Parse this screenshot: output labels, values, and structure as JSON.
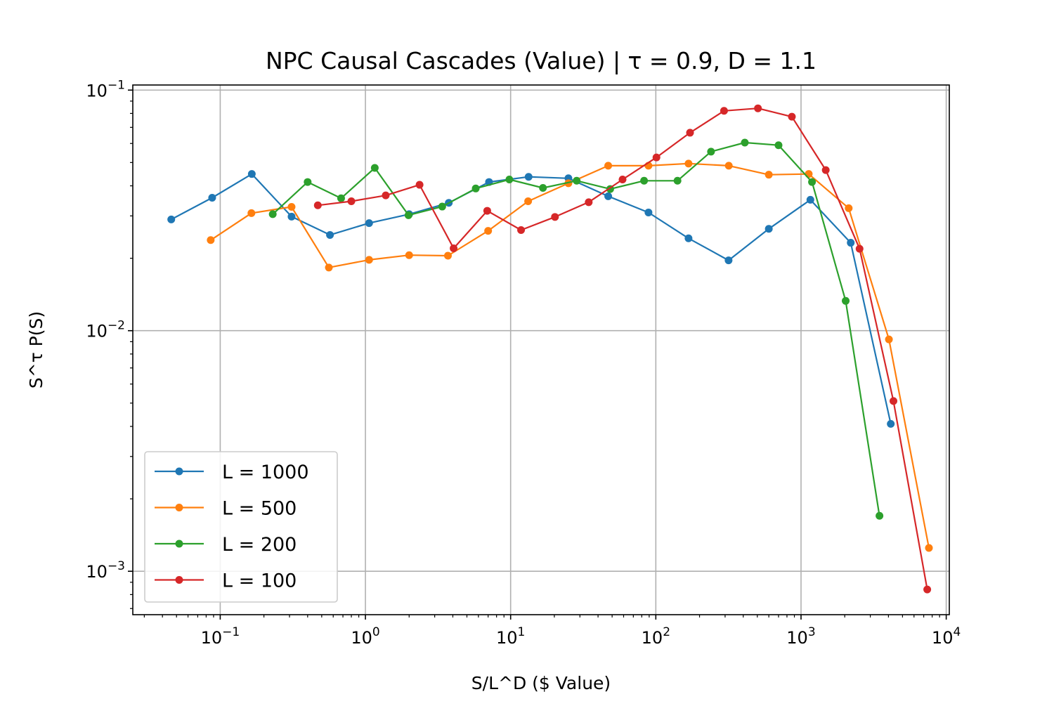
{
  "chart_data": {
    "type": "line",
    "title": "NPC Causal Cascades (Value) | τ = 0.9, D = 1.1",
    "xlabel": "S/L^D ($ Value)",
    "ylabel": "S^τ P(S)",
    "xscale": "log",
    "yscale": "log",
    "xlim": [
      0.025,
      10500
    ],
    "ylim": [
      0.00066,
      0.105
    ],
    "grid": true,
    "legend_position": "lower-left",
    "x_ticks": [
      {
        "value": 0.1,
        "label": "10^−1"
      },
      {
        "value": 1,
        "label": "10^0"
      },
      {
        "value": 10,
        "label": "10^1"
      },
      {
        "value": 100,
        "label": "10^2"
      },
      {
        "value": 1000,
        "label": "10^3"
      },
      {
        "value": 10000,
        "label": "10^4"
      }
    ],
    "y_ticks": [
      {
        "value": 0.001,
        "label": "10^−3"
      },
      {
        "value": 0.01,
        "label": "10^−2"
      },
      {
        "value": 0.1,
        "label": "10^−1"
      }
    ],
    "series": [
      {
        "name": "L = 1000",
        "color": "#1f77b4",
        "x": [
          0.046,
          0.088,
          0.165,
          0.31,
          0.57,
          1.06,
          2.0,
          3.75,
          7.1,
          13.3,
          25,
          47,
          89,
          168,
          317,
          600,
          1160,
          2200,
          4150
        ],
        "y": [
          0.029,
          0.0357,
          0.0448,
          0.0298,
          0.025,
          0.028,
          0.0305,
          0.034,
          0.0415,
          0.0436,
          0.043,
          0.0362,
          0.031,
          0.0242,
          0.0196,
          0.0265,
          0.035,
          0.0232,
          0.0041
        ]
      },
      {
        "name": "L = 500",
        "color": "#ff7f0e",
        "x": [
          0.086,
          0.164,
          0.31,
          0.56,
          1.06,
          2.0,
          3.7,
          7.0,
          13.2,
          25,
          47,
          89,
          168,
          318,
          600,
          1130,
          2130,
          4030,
          7600
        ],
        "y": [
          0.0238,
          0.0308,
          0.0327,
          0.0183,
          0.0197,
          0.0206,
          0.0205,
          0.026,
          0.0345,
          0.041,
          0.0485,
          0.0485,
          0.0495,
          0.0485,
          0.0445,
          0.0448,
          0.0323,
          0.0092,
          0.00125
        ]
      },
      {
        "name": "L = 200",
        "color": "#2ca02c",
        "x": [
          0.23,
          0.4,
          0.68,
          1.16,
          1.98,
          3.38,
          5.75,
          9.8,
          16.7,
          28.5,
          48.5,
          83,
          141,
          240,
          410,
          700,
          1190,
          2030,
          3470
        ],
        "y": [
          0.0305,
          0.0415,
          0.0355,
          0.0475,
          0.0302,
          0.0328,
          0.039,
          0.0425,
          0.0392,
          0.042,
          0.0388,
          0.042,
          0.042,
          0.0555,
          0.0605,
          0.059,
          0.0415,
          0.0133,
          0.0017
        ]
      },
      {
        "name": "L = 100",
        "color": "#d62728",
        "x": [
          0.47,
          0.8,
          1.38,
          2.36,
          4.05,
          6.9,
          11.8,
          20.2,
          34.5,
          59,
          101,
          172,
          295,
          505,
          865,
          1480,
          2530,
          4330,
          7400
        ],
        "y": [
          0.0332,
          0.0345,
          0.0365,
          0.0404,
          0.022,
          0.0315,
          0.0262,
          0.0297,
          0.0342,
          0.0425,
          0.0525,
          0.0665,
          0.082,
          0.084,
          0.0775,
          0.0465,
          0.0219,
          0.0051,
          0.00084
        ]
      }
    ]
  }
}
